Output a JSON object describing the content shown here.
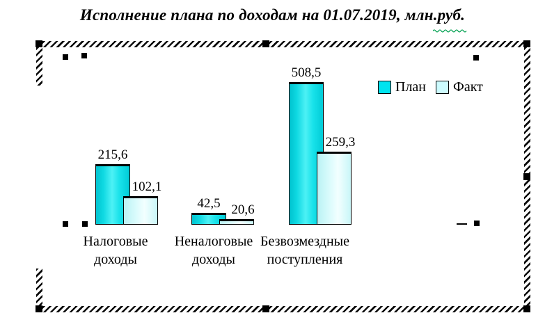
{
  "title": "Исполнение плана по доходам на 01.07.2019, млн.руб.",
  "chart_data": {
    "type": "bar",
    "title": "Исполнение плана по доходам на 01.07.2019, млн.руб.",
    "units": "млн.руб.",
    "categories": [
      "Налоговые доходы",
      "Неналоговые доходы",
      "Безвозмездные поступления"
    ],
    "category_lines": [
      [
        "Налоговые",
        "доходы"
      ],
      [
        "Неналоговые",
        "доходы"
      ],
      [
        "Безвозмездные",
        "поступления"
      ]
    ],
    "series": [
      {
        "name": "План",
        "values": [
          215.6,
          42.5,
          508.5
        ],
        "labels": [
          "215,6",
          "42,5",
          "508,5"
        ],
        "color": "#00e4ef"
      },
      {
        "name": "Факт",
        "values": [
          102.1,
          20.6,
          259.3
        ],
        "labels": [
          "102,1",
          "20,6",
          "259,3"
        ],
        "color": "#cdfbfe"
      }
    ],
    "ylim": [
      0,
      560
    ],
    "grid": false,
    "legend_position": "top-right",
    "axis_visible": false,
    "state": "chart-selected-edit-mode"
  }
}
